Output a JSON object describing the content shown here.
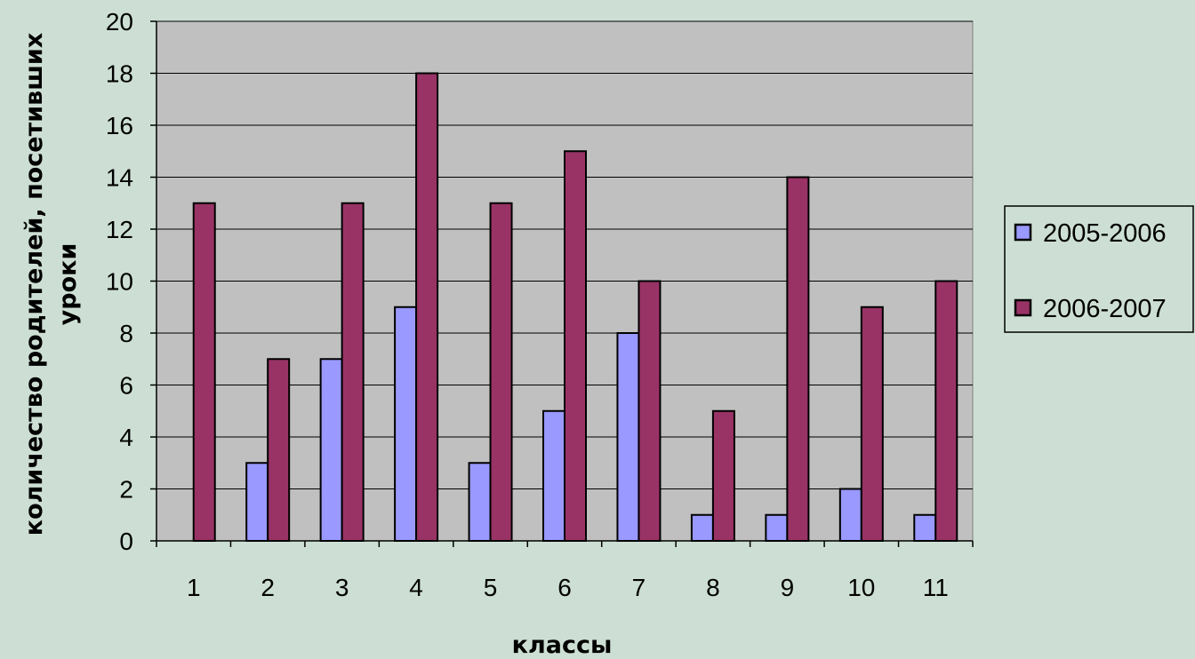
{
  "chart_data": {
    "type": "bar",
    "title": "",
    "xlabel": "классы",
    "ylabel_lines": [
      "количество родителей, посетивших",
      "уроки"
    ],
    "categories": [
      "1",
      "2",
      "3",
      "4",
      "5",
      "6",
      "7",
      "8",
      "9",
      "10",
      "11"
    ],
    "series": [
      {
        "name": "2005-2006",
        "values": [
          0,
          3,
          7,
          9,
          3,
          5,
          8,
          1,
          1,
          2,
          1
        ],
        "color": "#9999ff"
      },
      {
        "name": "2006-2007",
        "values": [
          13,
          7,
          13,
          18,
          13,
          15,
          10,
          5,
          14,
          9,
          10
        ],
        "color": "#993366"
      }
    ],
    "ylim": [
      0,
      20
    ],
    "yticks": [
      "0",
      "2",
      "4",
      "6",
      "8",
      "10",
      "12",
      "14",
      "16",
      "18",
      "20"
    ],
    "grid": true,
    "legend_position": "right",
    "plot_background": "#c0c0c0",
    "page_background": "#cddfd4"
  }
}
